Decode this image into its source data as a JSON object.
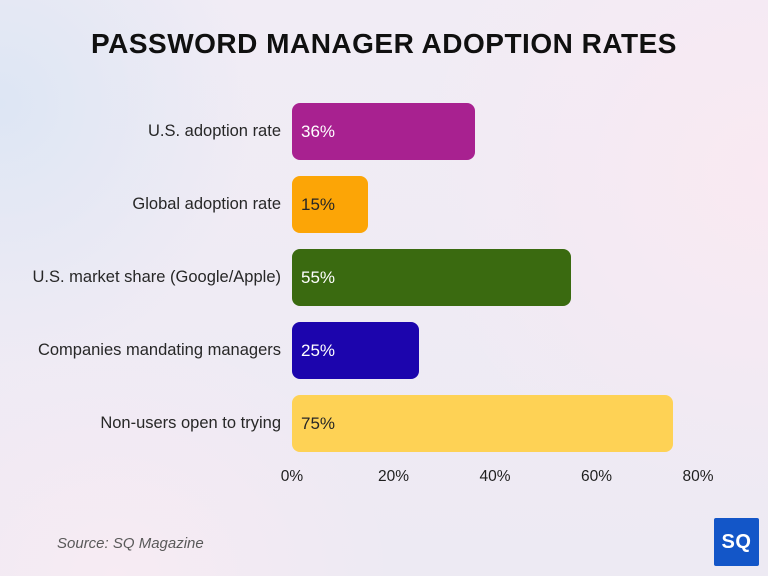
{
  "page": {
    "title": "PASSWORD MANAGER ADOPTION RATES",
    "source": "Source: SQ Magazine",
    "logo_text": "SQ",
    "logo_color": "#1356c8"
  },
  "chart_data": {
    "type": "bar",
    "orientation": "horizontal",
    "title": "PASSWORD MANAGER ADOPTION RATES",
    "categories": [
      "U.S. adoption rate",
      "Global adoption rate",
      "U.S. market share (Google/Apple)",
      "Companies mandating managers",
      "Non-users open to trying"
    ],
    "values": [
      36,
      15,
      55,
      25,
      75
    ],
    "value_labels": [
      "36%",
      "15%",
      "55%",
      "25%",
      "75%"
    ],
    "bar_colors": [
      "#a82190",
      "#fca506",
      "#3a6a10",
      "#1c05ad",
      "#fed255"
    ],
    "value_label_colors": [
      "#ffffff",
      "#262626",
      "#ffffff",
      "#ffffff",
      "#262626"
    ],
    "x_ticks": [
      "0%",
      "20%",
      "40%",
      "60%",
      "80%"
    ],
    "xlim": [
      0,
      80
    ],
    "xlabel": "",
    "ylabel": "",
    "grid": false,
    "legend": false,
    "annotation": "Source: SQ Magazine"
  }
}
